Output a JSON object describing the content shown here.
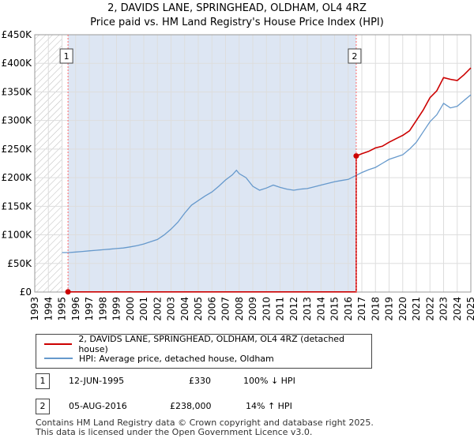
{
  "chart_data": {
    "type": "line",
    "title": "2, DAVIDS LANE, SPRINGHEAD, OLDHAM, OL4 4RZ",
    "subtitle": "Price paid vs. HM Land Registry's House Price Index (HPI)",
    "xlim": [
      1993,
      2025
    ],
    "ylim": [
      0,
      450000
    ],
    "x_ticks": [
      1993,
      1994,
      1995,
      1996,
      1997,
      1998,
      1999,
      2000,
      2001,
      2002,
      2003,
      2004,
      2005,
      2006,
      2007,
      2008,
      2009,
      2010,
      2011,
      2012,
      2013,
      2014,
      2015,
      2016,
      2017,
      2018,
      2019,
      2020,
      2021,
      2022,
      2023,
      2024,
      2025
    ],
    "y_ticks": [
      {
        "value": 0,
        "label": "£0"
      },
      {
        "value": 50000,
        "label": "£50K"
      },
      {
        "value": 100000,
        "label": "£100K"
      },
      {
        "value": 150000,
        "label": "£150K"
      },
      {
        "value": 200000,
        "label": "£200K"
      },
      {
        "value": 250000,
        "label": "£250K"
      },
      {
        "value": 300000,
        "label": "£300K"
      },
      {
        "value": 350000,
        "label": "£350K"
      },
      {
        "value": 400000,
        "label": "£400K"
      },
      {
        "value": 450000,
        "label": "£450K"
      }
    ],
    "colors": {
      "property": "#cc0000",
      "hpi": "#6699cc",
      "grid": "#dddddd",
      "marker_line": "#ff6666",
      "shading": "#dde6f3"
    },
    "series": [
      {
        "name": "2, DAVIDS LANE, SPRINGHEAD, OLDHAM, OL4 4RZ (detached house)",
        "key": "property",
        "points": [
          [
            1995.44,
            330
          ],
          [
            2016.59,
            330
          ],
          [
            2016.59,
            238000
          ],
          [
            2017.0,
            242000
          ],
          [
            2017.5,
            246000
          ],
          [
            2018.0,
            252000
          ],
          [
            2018.5,
            255000
          ],
          [
            2019.0,
            262000
          ],
          [
            2019.5,
            268000
          ],
          [
            2020.0,
            274000
          ],
          [
            2020.5,
            282000
          ],
          [
            2021.0,
            300000
          ],
          [
            2021.5,
            318000
          ],
          [
            2022.0,
            340000
          ],
          [
            2022.5,
            352000
          ],
          [
            2023.0,
            375000
          ],
          [
            2023.5,
            372000
          ],
          [
            2024.0,
            370000
          ],
          [
            2024.5,
            380000
          ],
          [
            2025.0,
            392000
          ]
        ]
      },
      {
        "name": "HPI: Average price, detached house, Oldham",
        "key": "hpi",
        "points": [
          [
            1995.0,
            69000
          ],
          [
            1995.5,
            69000
          ],
          [
            1996.0,
            70000
          ],
          [
            1996.5,
            71000
          ],
          [
            1997.0,
            72000
          ],
          [
            1997.5,
            73000
          ],
          [
            1998.0,
            74000
          ],
          [
            1998.5,
            75000
          ],
          [
            1999.0,
            76000
          ],
          [
            1999.5,
            77000
          ],
          [
            2000.0,
            79000
          ],
          [
            2000.5,
            81000
          ],
          [
            2001.0,
            84000
          ],
          [
            2001.5,
            88000
          ],
          [
            2002.0,
            92000
          ],
          [
            2002.5,
            100000
          ],
          [
            2003.0,
            110000
          ],
          [
            2003.5,
            122000
          ],
          [
            2004.0,
            138000
          ],
          [
            2004.5,
            152000
          ],
          [
            2005.0,
            160000
          ],
          [
            2005.5,
            168000
          ],
          [
            2006.0,
            175000
          ],
          [
            2006.5,
            185000
          ],
          [
            2007.0,
            196000
          ],
          [
            2007.5,
            205000
          ],
          [
            2007.8,
            213000
          ],
          [
            2008.0,
            207000
          ],
          [
            2008.5,
            200000
          ],
          [
            2009.0,
            185000
          ],
          [
            2009.5,
            178000
          ],
          [
            2010.0,
            182000
          ],
          [
            2010.5,
            187000
          ],
          [
            2011.0,
            183000
          ],
          [
            2011.5,
            180000
          ],
          [
            2012.0,
            178000
          ],
          [
            2012.5,
            180000
          ],
          [
            2013.0,
            181000
          ],
          [
            2013.5,
            184000
          ],
          [
            2014.0,
            187000
          ],
          [
            2014.5,
            190000
          ],
          [
            2015.0,
            193000
          ],
          [
            2015.5,
            195000
          ],
          [
            2016.0,
            197000
          ],
          [
            2016.5,
            203000
          ],
          [
            2017.0,
            209000
          ],
          [
            2017.5,
            214000
          ],
          [
            2018.0,
            218000
          ],
          [
            2018.5,
            225000
          ],
          [
            2019.0,
            232000
          ],
          [
            2019.5,
            236000
          ],
          [
            2020.0,
            240000
          ],
          [
            2020.5,
            250000
          ],
          [
            2021.0,
            262000
          ],
          [
            2021.5,
            280000
          ],
          [
            2022.0,
            298000
          ],
          [
            2022.5,
            310000
          ],
          [
            2023.0,
            330000
          ],
          [
            2023.5,
            322000
          ],
          [
            2024.0,
            325000
          ],
          [
            2024.5,
            335000
          ],
          [
            2025.0,
            345000
          ]
        ]
      }
    ],
    "transactions": [
      {
        "num": "1",
        "x": 1995.44,
        "value": 330,
        "date": "12-JUN-1995",
        "price": "£330",
        "hpi_diff": "100% ↓ HPI"
      },
      {
        "num": "2",
        "x": 2016.59,
        "value": 238000,
        "date": "05-AUG-2016",
        "price": "£238,000",
        "hpi_diff": "14% ↑ HPI"
      }
    ],
    "hatched_region": [
      1993,
      1995.0
    ]
  },
  "legend": {
    "property_label": "2, DAVIDS LANE, SPRINGHEAD, OLDHAM, OL4 4RZ (detached house)",
    "hpi_label": "HPI: Average price, detached house, Oldham"
  },
  "table": {
    "rows": [
      {
        "num": "1",
        "date": "12-JUN-1995",
        "price": "£330",
        "hpi_diff": "100% ↓ HPI"
      },
      {
        "num": "2",
        "date": "05-AUG-2016",
        "price": "£238,000",
        "hpi_diff": "14% ↑ HPI"
      }
    ]
  },
  "footer": {
    "line1": "Contains HM Land Registry data © Crown copyright and database right 2025.",
    "line2": "This data is licensed under the Open Government Licence v3.0."
  }
}
